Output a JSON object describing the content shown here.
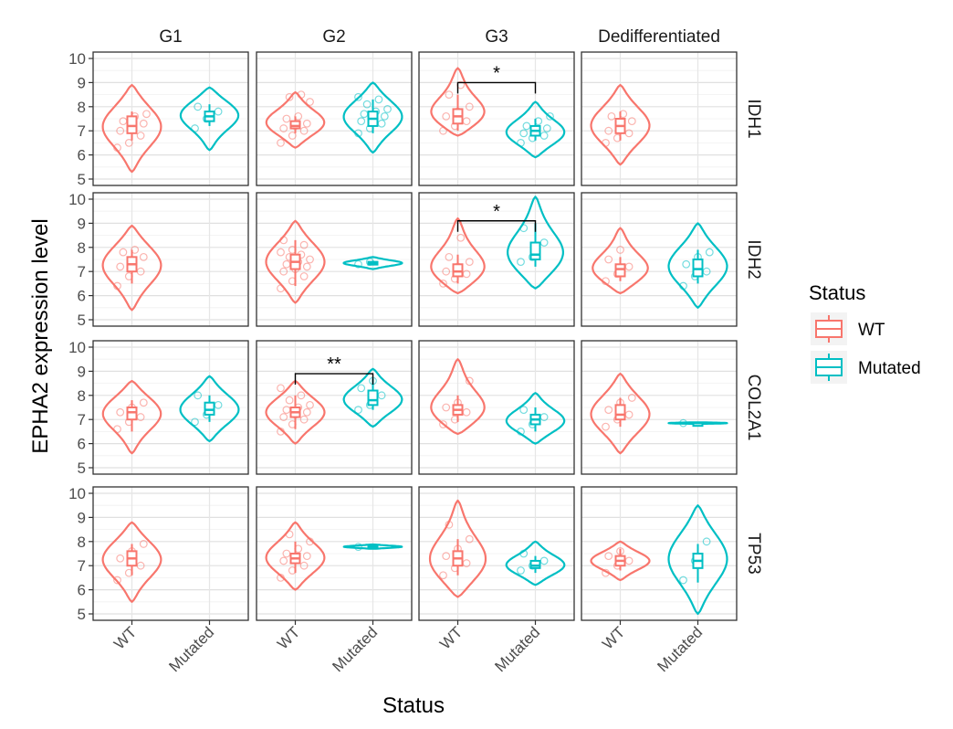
{
  "chart_data": {
    "type": "violin",
    "title": "",
    "xlabel": "Status",
    "ylabel": "EPHA2 expression level",
    "ylim": [
      5,
      10
    ],
    "yticks": [
      5,
      6,
      7,
      8,
      9,
      10
    ],
    "columns": [
      "G1",
      "G2",
      "G3",
      "Dedifferentiated"
    ],
    "rows": [
      "IDH1",
      "IDH2",
      "COL2A1",
      "TP53"
    ],
    "categories": [
      "WT",
      "Mutated"
    ],
    "legend": {
      "title": "Status",
      "entries": [
        {
          "label": "WT",
          "color": "#F8766D"
        },
        {
          "label": "Mutated",
          "color": "#00BFC4"
        }
      ]
    },
    "panels": [
      {
        "row": "IDH1",
        "col": "G1",
        "groups": [
          {
            "status": "WT",
            "q1": 6.9,
            "median": 7.2,
            "q3": 7.6,
            "whisker_low": 6.6,
            "whisker_high": 7.8,
            "vmin": 5.3,
            "vmax": 8.9,
            "mode": 7.2,
            "points": [
              6.3,
              6.5,
              6.8,
              7.0,
              7.1,
              7.3,
              7.4,
              7.6,
              7.7
            ]
          },
          {
            "status": "Mutated",
            "q1": 7.4,
            "median": 7.6,
            "q3": 7.8,
            "whisker_low": 7.2,
            "whisker_high": 8.1,
            "vmin": 6.2,
            "vmax": 8.8,
            "mode": 7.7,
            "points": [
              7.1,
              7.5,
              7.8,
              8.0
            ]
          }
        ],
        "sig": null
      },
      {
        "row": "IDH1",
        "col": "G2",
        "groups": [
          {
            "status": "WT",
            "q1": 7.1,
            "median": 7.2,
            "q3": 7.4,
            "whisker_low": 6.9,
            "whisker_high": 7.6,
            "vmin": 6.3,
            "vmax": 8.6,
            "mode": 7.3,
            "points": [
              6.5,
              6.8,
              7.0,
              7.1,
              7.2,
              7.3,
              7.5,
              7.6,
              8.2,
              8.4,
              8.5
            ]
          },
          {
            "status": "Mutated",
            "q1": 7.2,
            "median": 7.5,
            "q3": 7.8,
            "whisker_low": 6.9,
            "whisker_high": 8.3,
            "vmin": 6.1,
            "vmax": 9.0,
            "mode": 7.6,
            "points": [
              6.9,
              7.1,
              7.3,
              7.4,
              7.5,
              7.6,
              7.7,
              7.8,
              7.9,
              8.1,
              8.3,
              8.4
            ]
          }
        ],
        "sig": null
      },
      {
        "row": "IDH1",
        "col": "G3",
        "groups": [
          {
            "status": "WT",
            "q1": 7.3,
            "median": 7.6,
            "q3": 7.9,
            "whisker_low": 7.0,
            "whisker_high": 8.5,
            "vmin": 6.8,
            "vmax": 9.6,
            "mode": 7.6,
            "points": [
              7.0,
              7.2,
              7.4,
              7.6,
              7.8,
              8.0,
              8.5,
              8.9
            ]
          },
          {
            "status": "Mutated",
            "q1": 6.8,
            "median": 7.0,
            "q3": 7.2,
            "whisker_low": 6.6,
            "whisker_high": 7.5,
            "vmin": 5.9,
            "vmax": 8.2,
            "mode": 6.9,
            "points": [
              6.5,
              6.7,
              6.8,
              6.9,
              7.0,
              7.1,
              7.2,
              7.4,
              7.6
            ]
          }
        ],
        "sig": {
          "label": "*",
          "y": 9.0
        }
      },
      {
        "row": "IDH1",
        "col": "Dedifferentiated",
        "groups": [
          {
            "status": "WT",
            "q1": 6.9,
            "median": 7.2,
            "q3": 7.5,
            "whisker_low": 6.6,
            "whisker_high": 7.8,
            "vmin": 5.6,
            "vmax": 8.9,
            "mode": 7.2,
            "points": [
              6.5,
              6.7,
              6.9,
              7.0,
              7.2,
              7.4,
              7.6,
              7.7
            ]
          },
          {
            "status": "Mutated",
            "empty": true
          }
        ],
        "sig": null
      },
      {
        "row": "IDH2",
        "col": "G1",
        "groups": [
          {
            "status": "WT",
            "q1": 7.0,
            "median": 7.3,
            "q3": 7.6,
            "whisker_low": 6.5,
            "whisker_high": 7.9,
            "vmin": 5.4,
            "vmax": 8.9,
            "mode": 7.3,
            "points": [
              6.4,
              6.8,
              7.0,
              7.2,
              7.4,
              7.6,
              7.8,
              7.9
            ]
          },
          {
            "status": "Mutated",
            "empty": true
          }
        ],
        "sig": null
      },
      {
        "row": "IDH2",
        "col": "G2",
        "groups": [
          {
            "status": "WT",
            "q1": 7.1,
            "median": 7.4,
            "q3": 7.7,
            "whisker_low": 6.4,
            "whisker_high": 8.3,
            "vmin": 5.7,
            "vmax": 9.1,
            "mode": 7.4,
            "points": [
              6.3,
              6.6,
              6.8,
              7.0,
              7.1,
              7.2,
              7.3,
              7.4,
              7.5,
              7.6,
              7.7,
              7.8,
              7.9,
              8.1,
              8.3
            ]
          },
          {
            "status": "Mutated",
            "q1": 7.3,
            "median": 7.35,
            "q3": 7.4,
            "whisker_low": 7.25,
            "whisker_high": 7.45,
            "vmin": 7.1,
            "vmax": 7.6,
            "mode": 7.35,
            "points": [
              7.3,
              7.4
            ]
          }
        ],
        "sig": null
      },
      {
        "row": "IDH2",
        "col": "G3",
        "groups": [
          {
            "status": "WT",
            "q1": 6.8,
            "median": 7.0,
            "q3": 7.3,
            "whisker_low": 6.5,
            "whisker_high": 7.7,
            "vmin": 6.1,
            "vmax": 9.2,
            "mode": 7.0,
            "points": [
              6.5,
              6.7,
              6.9,
              7.0,
              7.2,
              7.4,
              7.6,
              8.4
            ]
          },
          {
            "status": "Mutated",
            "q1": 7.5,
            "median": 7.7,
            "q3": 8.2,
            "whisker_low": 7.2,
            "whisker_high": 9.0,
            "vmin": 6.3,
            "vmax": 10.1,
            "mode": 7.6,
            "points": [
              7.4,
              7.6,
              8.2,
              8.8
            ]
          }
        ],
        "sig": {
          "label": "*",
          "y": 9.1
        }
      },
      {
        "row": "IDH2",
        "col": "Dedifferentiated",
        "groups": [
          {
            "status": "WT",
            "q1": 6.8,
            "median": 7.1,
            "q3": 7.3,
            "whisker_low": 6.6,
            "whisker_high": 7.6,
            "vmin": 6.1,
            "vmax": 8.8,
            "mode": 7.0,
            "points": [
              6.6,
              6.9,
              7.2,
              7.5,
              7.9
            ]
          },
          {
            "status": "Mutated",
            "q1": 6.8,
            "median": 7.1,
            "q3": 7.5,
            "whisker_low": 6.5,
            "whisker_high": 7.9,
            "vmin": 5.5,
            "vmax": 9.0,
            "mode": 7.2,
            "points": [
              6.4,
              6.8,
              7.0,
              7.3,
              7.6,
              7.8
            ]
          }
        ],
        "sig": null
      },
      {
        "row": "COL2A1",
        "col": "G1",
        "groups": [
          {
            "status": "WT",
            "q1": 7.0,
            "median": 7.3,
            "q3": 7.5,
            "whisker_low": 6.5,
            "whisker_high": 7.8,
            "vmin": 5.6,
            "vmax": 8.6,
            "mode": 7.3,
            "points": [
              6.6,
              6.9,
              7.1,
              7.3,
              7.5,
              7.7
            ]
          },
          {
            "status": "Mutated",
            "q1": 7.2,
            "median": 7.4,
            "q3": 7.7,
            "whisker_low": 6.9,
            "whisker_high": 8.0,
            "vmin": 6.1,
            "vmax": 8.8,
            "mode": 7.4,
            "points": [
              6.9,
              7.2,
              7.6,
              8.0
            ]
          }
        ],
        "sig": null
      },
      {
        "row": "COL2A1",
        "col": "G2",
        "groups": [
          {
            "status": "WT",
            "q1": 7.1,
            "median": 7.3,
            "q3": 7.5,
            "whisker_low": 6.6,
            "whisker_high": 8.0,
            "vmin": 6.0,
            "vmax": 8.6,
            "mode": 7.3,
            "points": [
              6.5,
              6.8,
              7.0,
              7.1,
              7.2,
              7.3,
              7.4,
              7.5,
              7.6,
              7.8,
              8.0,
              8.3
            ]
          },
          {
            "status": "Mutated",
            "q1": 7.6,
            "median": 7.8,
            "q3": 8.2,
            "whisker_low": 7.4,
            "whisker_high": 8.7,
            "vmin": 6.7,
            "vmax": 9.1,
            "mode": 7.8,
            "points": [
              7.4,
              7.6,
              8.0,
              8.3,
              8.6
            ]
          }
        ],
        "sig": {
          "label": "**",
          "y": 8.9
        }
      },
      {
        "row": "COL2A1",
        "col": "G3",
        "groups": [
          {
            "status": "WT",
            "q1": 7.2,
            "median": 7.4,
            "q3": 7.6,
            "whisker_low": 6.9,
            "whisker_high": 8.0,
            "vmin": 6.4,
            "vmax": 9.5,
            "mode": 7.3,
            "points": [
              6.8,
              7.0,
              7.3,
              7.5,
              7.7,
              8.6
            ]
          },
          {
            "status": "Mutated",
            "q1": 6.8,
            "median": 7.0,
            "q3": 7.2,
            "whisker_low": 6.5,
            "whisker_high": 7.5,
            "vmin": 6.0,
            "vmax": 8.1,
            "mode": 6.9,
            "points": [
              6.5,
              6.8,
              7.1,
              7.4
            ]
          }
        ],
        "sig": null
      },
      {
        "row": "COL2A1",
        "col": "Dedifferentiated",
        "groups": [
          {
            "status": "WT",
            "q1": 7.0,
            "median": 7.2,
            "q3": 7.6,
            "whisker_low": 6.7,
            "whisker_high": 7.9,
            "vmin": 5.6,
            "vmax": 8.9,
            "mode": 7.2,
            "points": [
              6.7,
              7.0,
              7.2,
              7.4,
              7.7,
              7.9
            ]
          },
          {
            "status": "Mutated",
            "q1": 6.85,
            "median": 6.85,
            "q3": 6.85,
            "whisker_low": 6.85,
            "whisker_high": 6.85,
            "vmin": 6.82,
            "vmax": 6.88,
            "mode": 6.85,
            "points": [
              6.85
            ]
          }
        ],
        "sig": null
      },
      {
        "row": "TP53",
        "col": "G1",
        "groups": [
          {
            "status": "WT",
            "q1": 7.0,
            "median": 7.3,
            "q3": 7.6,
            "whisker_low": 6.6,
            "whisker_high": 7.9,
            "vmin": 5.5,
            "vmax": 8.8,
            "mode": 7.3,
            "points": [
              6.4,
              6.7,
              7.0,
              7.3,
              7.6,
              7.9
            ]
          },
          {
            "status": "Mutated",
            "empty": true
          }
        ],
        "sig": null
      },
      {
        "row": "TP53",
        "col": "G2",
        "groups": [
          {
            "status": "WT",
            "q1": 7.1,
            "median": 7.3,
            "q3": 7.5,
            "whisker_low": 6.7,
            "whisker_high": 8.0,
            "vmin": 6.0,
            "vmax": 8.8,
            "mode": 7.3,
            "points": [
              6.5,
              6.8,
              7.0,
              7.2,
              7.3,
              7.4,
              7.5,
              7.7,
              8.0,
              8.3
            ]
          },
          {
            "status": "Mutated",
            "q1": 7.75,
            "median": 7.78,
            "q3": 7.82,
            "whisker_low": 7.72,
            "whisker_high": 7.85,
            "vmin": 7.7,
            "vmax": 7.88,
            "mode": 7.78,
            "points": [
              7.78
            ]
          }
        ],
        "sig": null
      },
      {
        "row": "TP53",
        "col": "G3",
        "groups": [
          {
            "status": "WT",
            "q1": 7.0,
            "median": 7.3,
            "q3": 7.6,
            "whisker_low": 6.6,
            "whisker_high": 8.1,
            "vmin": 5.7,
            "vmax": 9.7,
            "mode": 7.1,
            "points": [
              6.6,
              6.9,
              7.1,
              7.4,
              7.7,
              8.1,
              8.7
            ]
          },
          {
            "status": "Mutated",
            "q1": 6.9,
            "median": 7.0,
            "q3": 7.2,
            "whisker_low": 6.7,
            "whisker_high": 7.4,
            "vmin": 6.2,
            "vmax": 8.0,
            "mode": 7.0,
            "points": [
              6.8,
              7.0,
              7.2,
              7.5
            ]
          }
        ],
        "sig": null
      },
      {
        "row": "TP53",
        "col": "Dedifferentiated",
        "groups": [
          {
            "status": "WT",
            "q1": 7.0,
            "median": 7.2,
            "q3": 7.4,
            "whisker_low": 6.8,
            "whisker_high": 7.7,
            "vmin": 6.4,
            "vmax": 8.0,
            "mode": 7.2,
            "points": [
              6.7,
              7.0,
              7.2,
              7.4,
              7.6
            ]
          },
          {
            "status": "Mutated",
            "q1": 6.9,
            "median": 7.2,
            "q3": 7.5,
            "whisker_low": 6.3,
            "whisker_high": 7.9,
            "vmin": 5.0,
            "vmax": 9.5,
            "mode": 7.3,
            "points": [
              6.4,
              7.2,
              8.0
            ]
          }
        ],
        "sig": null
      }
    ]
  }
}
